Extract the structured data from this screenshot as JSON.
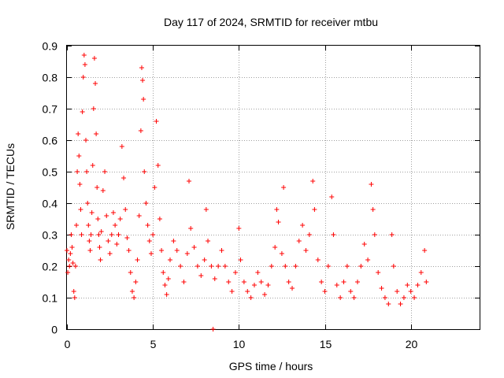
{
  "chart_data": {
    "type": "scatter",
    "title": "Day 117 of 2024, SRMTID for receiver mtbu",
    "xlabel": "GPS time / hours",
    "ylabel": "SRMTID / TECUs",
    "xlim": [
      0,
      24
    ],
    "ylim": [
      0,
      0.9
    ],
    "xticks": [
      0,
      5,
      10,
      15,
      20
    ],
    "xtick_labels": [
      "0",
      "5",
      "10",
      "15",
      "20"
    ],
    "yticks": [
      0,
      0.1,
      0.2,
      0.3,
      0.4,
      0.5,
      0.6,
      0.7,
      0.8,
      0.9
    ],
    "ytick_labels": [
      "0",
      "0.1",
      "0.2",
      "0.3",
      "0.4",
      "0.5",
      "0.6",
      "0.7",
      "0.8",
      "0.9"
    ],
    "grid": true,
    "marker": "plus",
    "color": "#ff0000",
    "series": [
      {
        "name": "SRMTID",
        "points": [
          [
            0.0,
            0.25
          ],
          [
            0.05,
            0.18
          ],
          [
            0.1,
            0.22
          ],
          [
            0.15,
            0.2
          ],
          [
            0.2,
            0.24
          ],
          [
            0.25,
            0.3
          ],
          [
            0.3,
            0.26
          ],
          [
            0.35,
            0.21
          ],
          [
            0.4,
            0.12
          ],
          [
            0.45,
            0.1
          ],
          [
            0.5,
            0.2
          ],
          [
            0.55,
            0.33
          ],
          [
            0.6,
            0.5
          ],
          [
            0.65,
            0.62
          ],
          [
            0.7,
            0.55
          ],
          [
            0.75,
            0.46
          ],
          [
            0.8,
            0.38
          ],
          [
            0.85,
            0.3
          ],
          [
            0.9,
            0.69
          ],
          [
            0.95,
            0.8
          ],
          [
            1.0,
            0.87
          ],
          [
            1.05,
            0.84
          ],
          [
            1.1,
            0.6
          ],
          [
            1.15,
            0.5
          ],
          [
            1.2,
            0.4
          ],
          [
            1.25,
            0.33
          ],
          [
            1.3,
            0.28
          ],
          [
            1.35,
            0.25
          ],
          [
            1.4,
            0.3
          ],
          [
            1.45,
            0.37
          ],
          [
            1.5,
            0.52
          ],
          [
            1.55,
            0.7
          ],
          [
            1.6,
            0.86
          ],
          [
            1.65,
            0.78
          ],
          [
            1.7,
            0.62
          ],
          [
            1.75,
            0.45
          ],
          [
            1.8,
            0.35
          ],
          [
            1.85,
            0.3
          ],
          [
            1.9,
            0.26
          ],
          [
            1.95,
            0.22
          ],
          [
            2.0,
            0.31
          ],
          [
            2.1,
            0.44
          ],
          [
            2.2,
            0.5
          ],
          [
            2.3,
            0.36
          ],
          [
            2.4,
            0.28
          ],
          [
            2.5,
            0.24
          ],
          [
            2.6,
            0.3
          ],
          [
            2.7,
            0.37
          ],
          [
            2.8,
            0.33
          ],
          [
            2.9,
            0.27
          ],
          [
            3.0,
            0.3
          ],
          [
            3.1,
            0.35
          ],
          [
            3.2,
            0.58
          ],
          [
            3.3,
            0.48
          ],
          [
            3.4,
            0.38
          ],
          [
            3.5,
            0.29
          ],
          [
            3.6,
            0.25
          ],
          [
            3.7,
            0.18
          ],
          [
            3.8,
            0.12
          ],
          [
            3.9,
            0.1
          ],
          [
            4.0,
            0.15
          ],
          [
            4.1,
            0.22
          ],
          [
            4.2,
            0.36
          ],
          [
            4.3,
            0.63
          ],
          [
            4.35,
            0.83
          ],
          [
            4.4,
            0.79
          ],
          [
            4.45,
            0.73
          ],
          [
            4.5,
            0.5
          ],
          [
            4.6,
            0.4
          ],
          [
            4.7,
            0.33
          ],
          [
            4.8,
            0.28
          ],
          [
            4.9,
            0.24
          ],
          [
            5.0,
            0.3
          ],
          [
            5.1,
            0.45
          ],
          [
            5.2,
            0.66
          ],
          [
            5.3,
            0.52
          ],
          [
            5.4,
            0.35
          ],
          [
            5.5,
            0.25
          ],
          [
            5.6,
            0.18
          ],
          [
            5.7,
            0.14
          ],
          [
            5.8,
            0.11
          ],
          [
            5.9,
            0.16
          ],
          [
            6.0,
            0.22
          ],
          [
            6.2,
            0.28
          ],
          [
            6.4,
            0.25
          ],
          [
            6.6,
            0.2
          ],
          [
            6.8,
            0.15
          ],
          [
            7.0,
            0.24
          ],
          [
            7.1,
            0.47
          ],
          [
            7.2,
            0.32
          ],
          [
            7.4,
            0.26
          ],
          [
            7.6,
            0.2
          ],
          [
            7.8,
            0.17
          ],
          [
            8.0,
            0.22
          ],
          [
            8.1,
            0.38
          ],
          [
            8.2,
            0.28
          ],
          [
            8.4,
            0.2
          ],
          [
            8.5,
            0.0
          ],
          [
            8.6,
            0.16
          ],
          [
            8.8,
            0.2
          ],
          [
            9.0,
            0.25
          ],
          [
            9.2,
            0.2
          ],
          [
            9.4,
            0.15
          ],
          [
            9.6,
            0.12
          ],
          [
            9.8,
            0.18
          ],
          [
            10.0,
            0.32
          ],
          [
            10.1,
            0.22
          ],
          [
            10.3,
            0.15
          ],
          [
            10.5,
            0.12
          ],
          [
            10.7,
            0.1
          ],
          [
            10.9,
            0.14
          ],
          [
            11.1,
            0.18
          ],
          [
            11.3,
            0.15
          ],
          [
            11.5,
            0.11
          ],
          [
            11.7,
            0.14
          ],
          [
            11.9,
            0.2
          ],
          [
            12.1,
            0.26
          ],
          [
            12.2,
            0.38
          ],
          [
            12.3,
            0.34
          ],
          [
            12.5,
            0.24
          ],
          [
            12.6,
            0.45
          ],
          [
            12.7,
            0.2
          ],
          [
            12.9,
            0.15
          ],
          [
            13.1,
            0.13
          ],
          [
            13.3,
            0.2
          ],
          [
            13.5,
            0.28
          ],
          [
            13.7,
            0.33
          ],
          [
            13.9,
            0.25
          ],
          [
            14.1,
            0.3
          ],
          [
            14.3,
            0.47
          ],
          [
            14.4,
            0.38
          ],
          [
            14.6,
            0.22
          ],
          [
            14.8,
            0.15
          ],
          [
            15.0,
            0.12
          ],
          [
            15.2,
            0.2
          ],
          [
            15.4,
            0.42
          ],
          [
            15.5,
            0.3
          ],
          [
            15.7,
            0.14
          ],
          [
            15.9,
            0.1
          ],
          [
            16.1,
            0.15
          ],
          [
            16.3,
            0.2
          ],
          [
            16.5,
            0.12
          ],
          [
            16.7,
            0.1
          ],
          [
            16.9,
            0.15
          ],
          [
            17.1,
            0.2
          ],
          [
            17.3,
            0.27
          ],
          [
            17.5,
            0.22
          ],
          [
            17.7,
            0.46
          ],
          [
            17.8,
            0.38
          ],
          [
            17.9,
            0.3
          ],
          [
            18.1,
            0.18
          ],
          [
            18.3,
            0.13
          ],
          [
            18.5,
            0.1
          ],
          [
            18.7,
            0.08
          ],
          [
            18.9,
            0.3
          ],
          [
            19.0,
            0.2
          ],
          [
            19.2,
            0.12
          ],
          [
            19.4,
            0.08
          ],
          [
            19.6,
            0.1
          ],
          [
            19.8,
            0.14
          ],
          [
            20.0,
            0.12
          ],
          [
            20.2,
            0.1
          ],
          [
            20.4,
            0.14
          ],
          [
            20.6,
            0.18
          ],
          [
            20.8,
            0.25
          ],
          [
            20.9,
            0.15
          ]
        ]
      }
    ]
  }
}
